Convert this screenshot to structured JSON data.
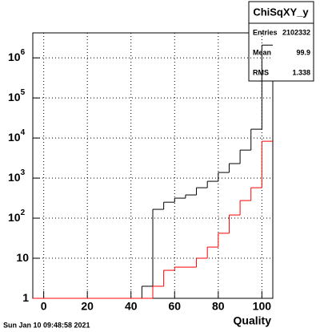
{
  "chart_data": {
    "type": "histogram",
    "x_label": "Quality",
    "bins": [
      -5,
      0,
      5,
      10,
      15,
      20,
      25,
      30,
      35,
      40,
      45,
      50,
      55,
      60,
      65,
      70,
      75,
      80,
      85,
      90,
      95,
      100,
      105
    ],
    "series": [
      {
        "name": "ChiSqXY_y",
        "color": "#000000",
        "values": [
          0,
          0,
          0,
          0,
          0,
          0,
          0,
          0,
          0,
          0,
          2,
          166,
          250,
          316,
          380,
          575,
          832,
          1380,
          2300,
          5000,
          16600,
          2080000
        ]
      },
      {
        "color": "#ff0000",
        "values": [
          0,
          0,
          0,
          0,
          0,
          0,
          0,
          0,
          0,
          0,
          0,
          2,
          5,
          6,
          6,
          10,
          19,
          42,
          120,
          275,
          575,
          8300
        ]
      }
    ],
    "xlim": [
      -5,
      105
    ],
    "xticks": [
      0,
      20,
      40,
      60,
      80,
      100
    ],
    "ylim": [
      1,
      4200000
    ],
    "log_y": true,
    "yticks": [
      {
        "value": 1,
        "label": "1"
      },
      {
        "value": 10,
        "label": "10"
      },
      {
        "value": 100,
        "label": "10",
        "exponent": "2"
      },
      {
        "value": 1000,
        "label": "10",
        "exponent": "3"
      },
      {
        "value": 10000,
        "label": "10",
        "exponent": "4"
      },
      {
        "value": 100000,
        "label": "10",
        "exponent": "5"
      },
      {
        "value": 1000000,
        "label": "10",
        "exponent": "6"
      }
    ],
    "grid": true,
    "stats": {
      "title": "ChiSqXY_y",
      "rows": [
        [
          "Entries",
          "2102332"
        ],
        [
          "Mean",
          "99.9"
        ],
        [
          "RMS",
          "1.338"
        ]
      ]
    },
    "timestamp": "Sun Jan 10 09:48:58 2021"
  }
}
